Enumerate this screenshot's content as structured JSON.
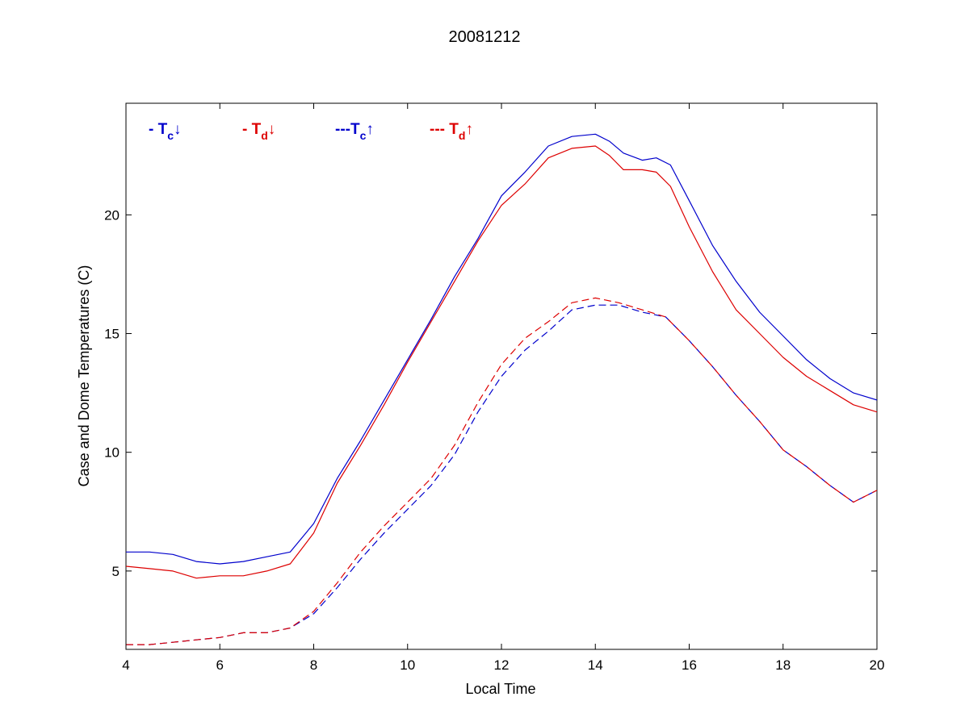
{
  "chart_data": {
    "type": "line",
    "title": "20081212",
    "xlabel": "Local Time",
    "ylabel": "Case and Dome Temperatures (C)",
    "xlim": [
      4,
      20
    ],
    "ylim": [
      1.7,
      24.7
    ],
    "xticks": [
      4,
      6,
      8,
      10,
      12,
      14,
      16,
      18,
      20
    ],
    "yticks": [
      5,
      10,
      15,
      20
    ],
    "grid": false,
    "legend_position": "top-left",
    "legend_style": "horizontal row inside plot",
    "series": [
      {
        "name": "Tc↓",
        "legend": {
          "prefix": "- T",
          "sub": "c",
          "arrow": "↓"
        },
        "color": "#0000cc",
        "dash": "solid",
        "x": [
          4.0,
          4.5,
          5.0,
          5.5,
          6.0,
          6.5,
          7.0,
          7.5,
          8.0,
          8.5,
          9.0,
          9.5,
          10.0,
          10.5,
          11.0,
          11.5,
          12.0,
          12.5,
          13.0,
          13.5,
          14.0,
          14.3,
          14.6,
          15.0,
          15.3,
          15.6,
          16.0,
          16.5,
          17.0,
          17.5,
          18.0,
          18.5,
          19.0,
          19.5,
          20.0
        ],
        "y": [
          5.8,
          5.8,
          5.7,
          5.4,
          5.3,
          5.4,
          5.6,
          5.8,
          7.0,
          8.9,
          10.5,
          12.2,
          13.9,
          15.6,
          17.4,
          19.0,
          20.8,
          21.8,
          22.9,
          23.3,
          23.4,
          23.1,
          22.6,
          22.3,
          22.4,
          22.1,
          20.6,
          18.7,
          17.2,
          15.9,
          14.9,
          13.9,
          13.1,
          12.5,
          12.2
        ]
      },
      {
        "name": "Td↓",
        "legend": {
          "prefix": "- T",
          "sub": "d",
          "arrow": "↓"
        },
        "color": "#dd0000",
        "dash": "solid",
        "x": [
          4.0,
          4.5,
          5.0,
          5.5,
          6.0,
          6.5,
          7.0,
          7.5,
          8.0,
          8.5,
          9.0,
          9.5,
          10.0,
          10.5,
          11.0,
          11.5,
          12.0,
          12.5,
          13.0,
          13.5,
          14.0,
          14.3,
          14.6,
          15.0,
          15.3,
          15.6,
          16.0,
          16.5,
          17.0,
          17.5,
          18.0,
          18.5,
          19.0,
          19.5,
          20.0
        ],
        "y": [
          5.2,
          5.1,
          5.0,
          4.7,
          4.8,
          4.8,
          5.0,
          5.3,
          6.6,
          8.7,
          10.3,
          12.0,
          13.8,
          15.5,
          17.2,
          18.9,
          20.4,
          21.3,
          22.4,
          22.8,
          22.9,
          22.5,
          21.9,
          21.9,
          21.8,
          21.2,
          19.5,
          17.6,
          16.0,
          15.0,
          14.0,
          13.2,
          12.6,
          12.0,
          11.7
        ]
      },
      {
        "name": "Tc↑",
        "legend": {
          "prefix": "---T",
          "sub": "c",
          "arrow": "↑"
        },
        "color": "#0000cc",
        "dash": "dashed",
        "x": [
          4.0,
          4.5,
          5.0,
          5.5,
          6.0,
          6.5,
          7.0,
          7.5,
          8.0,
          8.5,
          9.0,
          9.5,
          10.0,
          10.5,
          11.0,
          11.5,
          12.0,
          12.5,
          13.0,
          13.5,
          14.0,
          14.5,
          15.0,
          15.5,
          16.0,
          16.5,
          17.0,
          17.5,
          18.0,
          18.5,
          19.0,
          19.5,
          20.0
        ],
        "y": [
          1.9,
          1.9,
          2.0,
          2.1,
          2.2,
          2.4,
          2.4,
          2.6,
          3.2,
          4.3,
          5.5,
          6.6,
          7.6,
          8.6,
          9.9,
          11.7,
          13.2,
          14.3,
          15.1,
          16.0,
          16.2,
          16.2,
          15.9,
          15.7,
          14.7,
          13.6,
          12.4,
          11.3,
          10.1,
          9.4,
          8.6,
          7.9,
          8.4
        ]
      },
      {
        "name": "Td↑",
        "legend": {
          "prefix": "--- T",
          "sub": "d",
          "arrow": "↑"
        },
        "color": "#dd0000",
        "dash": "dashed",
        "x": [
          4.0,
          4.5,
          5.0,
          5.5,
          6.0,
          6.5,
          7.0,
          7.5,
          8.0,
          8.5,
          9.0,
          9.5,
          10.0,
          10.5,
          11.0,
          11.5,
          12.0,
          12.5,
          13.0,
          13.5,
          14.0,
          14.5,
          15.0,
          15.5,
          16.0,
          16.5,
          17.0,
          17.5,
          18.0,
          18.5,
          19.0,
          19.5,
          20.0
        ],
        "y": [
          1.9,
          1.9,
          2.0,
          2.1,
          2.2,
          2.4,
          2.4,
          2.6,
          3.3,
          4.5,
          5.8,
          6.9,
          7.9,
          8.9,
          10.3,
          12.1,
          13.7,
          14.8,
          15.5,
          16.3,
          16.5,
          16.3,
          16.0,
          15.7,
          14.7,
          13.6,
          12.4,
          11.3,
          10.1,
          9.4,
          8.6,
          7.9,
          8.4
        ]
      }
    ]
  }
}
